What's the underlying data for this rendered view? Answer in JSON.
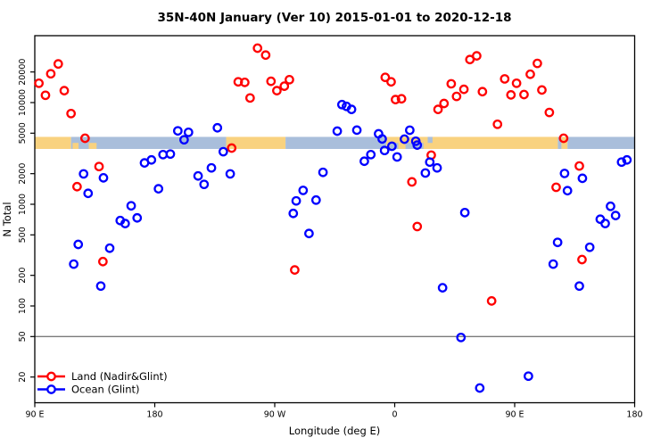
{
  "chart_data": {
    "type": "scatter",
    "title": "35N-40N January (Ver 10)   2015-01-01 to 2020-12-18",
    "xlabel": "Longitude (deg E)",
    "ylabel": "N Total",
    "x_axis": {
      "note": "axis spans 450 degrees of longitude starting at 90E heading east",
      "span_deg": 450,
      "tick_offsets_deg": [
        0,
        90,
        180,
        270,
        360,
        450
      ],
      "tick_labels": [
        "90 E",
        "180",
        "90 W",
        "0",
        "90 E",
        "180"
      ]
    },
    "y_axis": {
      "scale": "log",
      "tick_values": [
        20,
        50,
        100,
        200,
        500,
        1000,
        2000,
        5000,
        10000,
        20000
      ],
      "tick_labels": [
        "20",
        "50",
        "100",
        "200",
        "500",
        "1000",
        "2000",
        "5000",
        "10000",
        "20000"
      ],
      "range": [
        11,
        45500
      ]
    },
    "reference_line_n": 50,
    "land_ocean_band": {
      "top_n": 4600,
      "bottom_n": 3500,
      "land_color": "#F9D27F",
      "ocean_color": "#A9BEDB",
      "segments": [
        {
          "from": 0.0,
          "to": 0.0605,
          "type": "land"
        },
        {
          "from": 0.0605,
          "to": 0.319,
          "type": "ocean"
        },
        {
          "from": 0.319,
          "to": 0.418,
          "type": "land"
        },
        {
          "from": 0.418,
          "to": 0.586,
          "type": "ocean"
        },
        {
          "from": 0.586,
          "to": 0.872,
          "type": "land"
        },
        {
          "from": 0.872,
          "to": 0.878,
          "type": "ocean"
        },
        {
          "from": 0.878,
          "to": 0.888,
          "type": "land"
        },
        {
          "from": 0.888,
          "to": 1.0,
          "type": "ocean"
        }
      ],
      "speckles": [
        {
          "from": 0.063,
          "to": 0.073,
          "type": "land",
          "half": "bottom"
        },
        {
          "from": 0.09,
          "to": 0.103,
          "type": "land",
          "half": "bottom"
        },
        {
          "from": 0.592,
          "to": 0.606,
          "type": "ocean",
          "half": "bottom"
        },
        {
          "from": 0.618,
          "to": 0.648,
          "type": "ocean",
          "half": "bottom"
        },
        {
          "from": 0.655,
          "to": 0.663,
          "type": "ocean",
          "half": "top"
        }
      ]
    },
    "legend": {
      "items": [
        {
          "label": "Land (Nadir&Glint)",
          "color": "#FF0000"
        },
        {
          "label": "Ocean (Glint)",
          "color": "#0000FF"
        }
      ]
    },
    "series": [
      {
        "name": "Land (Nadir&Glint)",
        "color": "#FF0000",
        "points": [
          [
            3.1,
            15500
          ],
          [
            12,
            19200
          ],
          [
            17.6,
            24000
          ],
          [
            8,
            11800
          ],
          [
            22.1,
            13100
          ],
          [
            27.2,
            7800
          ],
          [
            37.7,
            4460
          ],
          [
            48.2,
            2350
          ],
          [
            31.7,
            1490
          ],
          [
            51.1,
            273
          ],
          [
            167.1,
            34300
          ],
          [
            173.2,
            29300
          ],
          [
            152.6,
            16000
          ],
          [
            157.5,
            15800
          ],
          [
            161.5,
            11100
          ],
          [
            177.2,
            16200
          ],
          [
            181.6,
            13100
          ],
          [
            187.2,
            14500
          ],
          [
            191,
            16800
          ],
          [
            147.7,
            3570
          ],
          [
            195,
            226
          ],
          [
            262.9,
            17700
          ],
          [
            267.3,
            16000
          ],
          [
            326.4,
            26500
          ],
          [
            331.5,
            28800
          ],
          [
            377,
            24300
          ],
          [
            371.7,
            19000
          ],
          [
            352.5,
            17100
          ],
          [
            361.4,
            15500
          ],
          [
            367,
            12000
          ],
          [
            357.2,
            11900
          ],
          [
            380.4,
            13300
          ],
          [
            312.4,
            15300
          ],
          [
            321.9,
            13500
          ],
          [
            316.4,
            11500
          ],
          [
            335.8,
            12800
          ],
          [
            307,
            9800
          ],
          [
            302.5,
            8570
          ],
          [
            270.6,
            10700
          ],
          [
            275.1,
            10900
          ],
          [
            386,
            8000
          ],
          [
            347.1,
            6120
          ],
          [
            396.7,
            4460
          ],
          [
            297.4,
            3040
          ],
          [
            282.9,
            1660
          ],
          [
            286.9,
            604
          ],
          [
            391.1,
            1470
          ],
          [
            408.5,
            2380
          ],
          [
            410.5,
            286
          ],
          [
            342.7,
            112
          ]
        ]
      },
      {
        "name": "Ocean (Glint)",
        "color": "#0000FF",
        "points": [
          [
            107.3,
            5270
          ],
          [
            115.3,
            5100
          ],
          [
            137,
            5650
          ],
          [
            112,
            4310
          ],
          [
            96.2,
            3080
          ],
          [
            101.7,
            3120
          ],
          [
            141.4,
            3290
          ],
          [
            226.9,
            5240
          ],
          [
            241.6,
            5360
          ],
          [
            257.9,
            4930
          ],
          [
            260.6,
            4390
          ],
          [
            281.3,
            5350
          ],
          [
            277.3,
            4370
          ],
          [
            285.8,
            4170
          ],
          [
            230.4,
            9550
          ],
          [
            233.8,
            9180
          ],
          [
            237.6,
            8570
          ],
          [
            36.6,
            1990
          ],
          [
            51.5,
            1820
          ],
          [
            40,
            1280
          ],
          [
            82.3,
            2550
          ],
          [
            87.5,
            2730
          ],
          [
            92.8,
            1420
          ],
          [
            72.3,
            966
          ],
          [
            76.8,
            735
          ],
          [
            64.1,
            692
          ],
          [
            67.8,
            646
          ],
          [
            32.6,
            403
          ],
          [
            56.2,
            370
          ],
          [
            122.5,
            1900
          ],
          [
            132.5,
            2280
          ],
          [
            127,
            1570
          ],
          [
            146.6,
            1990
          ],
          [
            216.2,
            2060
          ],
          [
            201.3,
            1370
          ],
          [
            196.1,
            1080
          ],
          [
            211,
            1100
          ],
          [
            193.9,
            813
          ],
          [
            205.7,
            516
          ],
          [
            29.2,
            258
          ],
          [
            49.5,
            157
          ],
          [
            247.2,
            2650
          ],
          [
            252.1,
            3080
          ],
          [
            267.9,
            3720
          ],
          [
            271.8,
            2920
          ],
          [
            286.9,
            3820
          ],
          [
            296.3,
            2600
          ],
          [
            301.8,
            2280
          ],
          [
            293,
            2030
          ],
          [
            322.6,
            828
          ],
          [
            397.4,
            2010
          ],
          [
            410.8,
            1800
          ],
          [
            399.6,
            1360
          ],
          [
            431.9,
            955
          ],
          [
            424.2,
            713
          ],
          [
            427.9,
            647
          ],
          [
            435.7,
            775
          ],
          [
            392.2,
            422
          ],
          [
            416.3,
            378
          ],
          [
            440.2,
            2600
          ],
          [
            444.2,
            2730
          ],
          [
            305.9,
            151
          ],
          [
            388.9,
            258
          ],
          [
            408.5,
            157
          ],
          [
            319.7,
            49
          ],
          [
            370.3,
            20.4
          ],
          [
            333.8,
            15.6
          ],
          [
            262.4,
            3380
          ]
        ]
      }
    ]
  }
}
